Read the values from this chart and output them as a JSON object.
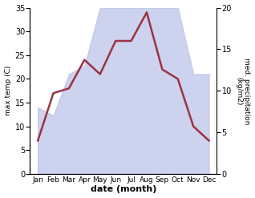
{
  "months": [
    "Jan",
    "Feb",
    "Mar",
    "Apr",
    "May",
    "Jun",
    "Jul",
    "Aug",
    "Sep",
    "Oct",
    "Nov",
    "Dec"
  ],
  "temperature": [
    7,
    17,
    18,
    24,
    21,
    28,
    28,
    34,
    22,
    20,
    10,
    7
  ],
  "precipitation_kg": [
    8,
    7,
    12,
    13,
    20,
    20,
    20,
    20,
    20,
    20,
    12,
    12
  ],
  "temp_color": "#993344",
  "precip_fill_color": "#b8c0e8",
  "temp_ylim": [
    0,
    35
  ],
  "precip_ylim": [
    0,
    20
  ],
  "temp_yticks": [
    0,
    5,
    10,
    15,
    20,
    25,
    30,
    35
  ],
  "precip_yticks": [
    0,
    5,
    10,
    15,
    20
  ],
  "xlabel": "date (month)",
  "ylabel_left": "max temp (C)",
  "ylabel_right": "med. precipitation\n(kg/m2)",
  "fig_width": 3.18,
  "fig_height": 2.47,
  "dpi": 100
}
